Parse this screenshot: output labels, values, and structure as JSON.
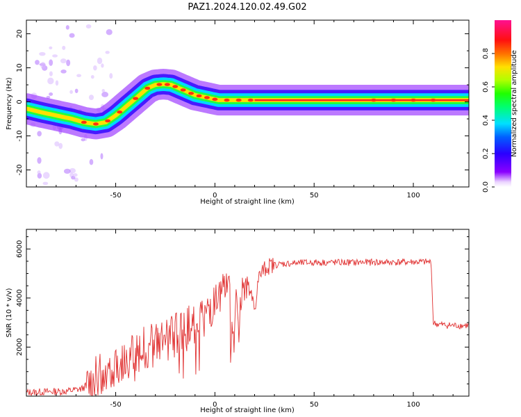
{
  "title": "PAZ1.2024.120.02.49.G02",
  "chart_data": [
    {
      "type": "heatmap",
      "xlabel": "Height of straight line (km)",
      "ylabel": "Frequency (Hz)",
      "xlim": [
        -95,
        128
      ],
      "ylim": [
        -25,
        24
      ],
      "xticks": [
        -50,
        0,
        50,
        100
      ],
      "yticks": [
        -20,
        -10,
        0,
        10,
        20
      ],
      "grid": false,
      "ridge": {
        "x": [
          -95,
          -88,
          -80,
          -72,
          -66,
          -60,
          -55,
          -50,
          -46,
          -42,
          -38,
          -34,
          -30,
          -26,
          -22,
          -18,
          -14,
          -10,
          -6,
          -2,
          2,
          6,
          10,
          14,
          18,
          22,
          30,
          40,
          60,
          80,
          100,
          128
        ],
        "y": [
          -2,
          -3,
          -4,
          -5,
          -6,
          -6.5,
          -6,
          -4,
          -2,
          0,
          2,
          4,
          5,
          5.2,
          5,
          4,
          3,
          2,
          1.5,
          1,
          0.5,
          0.5,
          0.5,
          0.5,
          0.5,
          0.5,
          0.5,
          0.5,
          0.5,
          0.5,
          0.5,
          0.5
        ]
      },
      "colorbar": {
        "label": "Normalized spectral amplitude",
        "range": [
          0,
          1
        ],
        "ticks": [
          "0.0",
          "0.2",
          "0.4",
          "0.6",
          "0.8"
        ],
        "colormap": "gist_rainbow (reversed)"
      }
    },
    {
      "type": "line",
      "xlabel": "Height of straight line (km)",
      "ylabel": "SNR (10 * v/v)",
      "xlim": [
        -95,
        128
      ],
      "ylim": [
        0,
        6800
      ],
      "xticks": [
        -50,
        0,
        50,
        100
      ],
      "yticks": [
        2000,
        4000,
        6000
      ],
      "grid": false,
      "series": [
        {
          "color": "#e03030",
          "x": [
            -95,
            -85,
            -75,
            -67,
            -62,
            -58,
            -54,
            -50,
            -46,
            -42,
            -38,
            -34,
            -30,
            -26,
            -22,
            -18,
            -14,
            -10,
            -6,
            -2,
            2,
            5,
            6,
            7,
            8,
            9,
            10,
            11,
            12,
            14,
            16,
            18,
            20,
            22,
            24,
            27,
            30,
            35,
            40,
            50,
            60,
            70,
            80,
            90,
            100,
            105,
            109,
            110,
            111,
            115,
            120,
            128
          ],
          "y": [
            150,
            180,
            200,
            300,
            600,
            900,
            1100,
            1300,
            1500,
            1700,
            1900,
            2000,
            2100,
            2200,
            2400,
            2600,
            2800,
            3000,
            3200,
            3500,
            3800,
            4300,
            4200,
            5500,
            3000,
            2000,
            2500,
            4500,
            3000,
            4600,
            5000,
            4000,
            3500,
            4800,
            5100,
            5300,
            5350,
            5400,
            5420,
            5450,
            5450,
            5450,
            5460,
            5460,
            5470,
            5470,
            5460,
            3000,
            2950,
            2900,
            2880,
            2880
          ]
        }
      ]
    }
  ]
}
